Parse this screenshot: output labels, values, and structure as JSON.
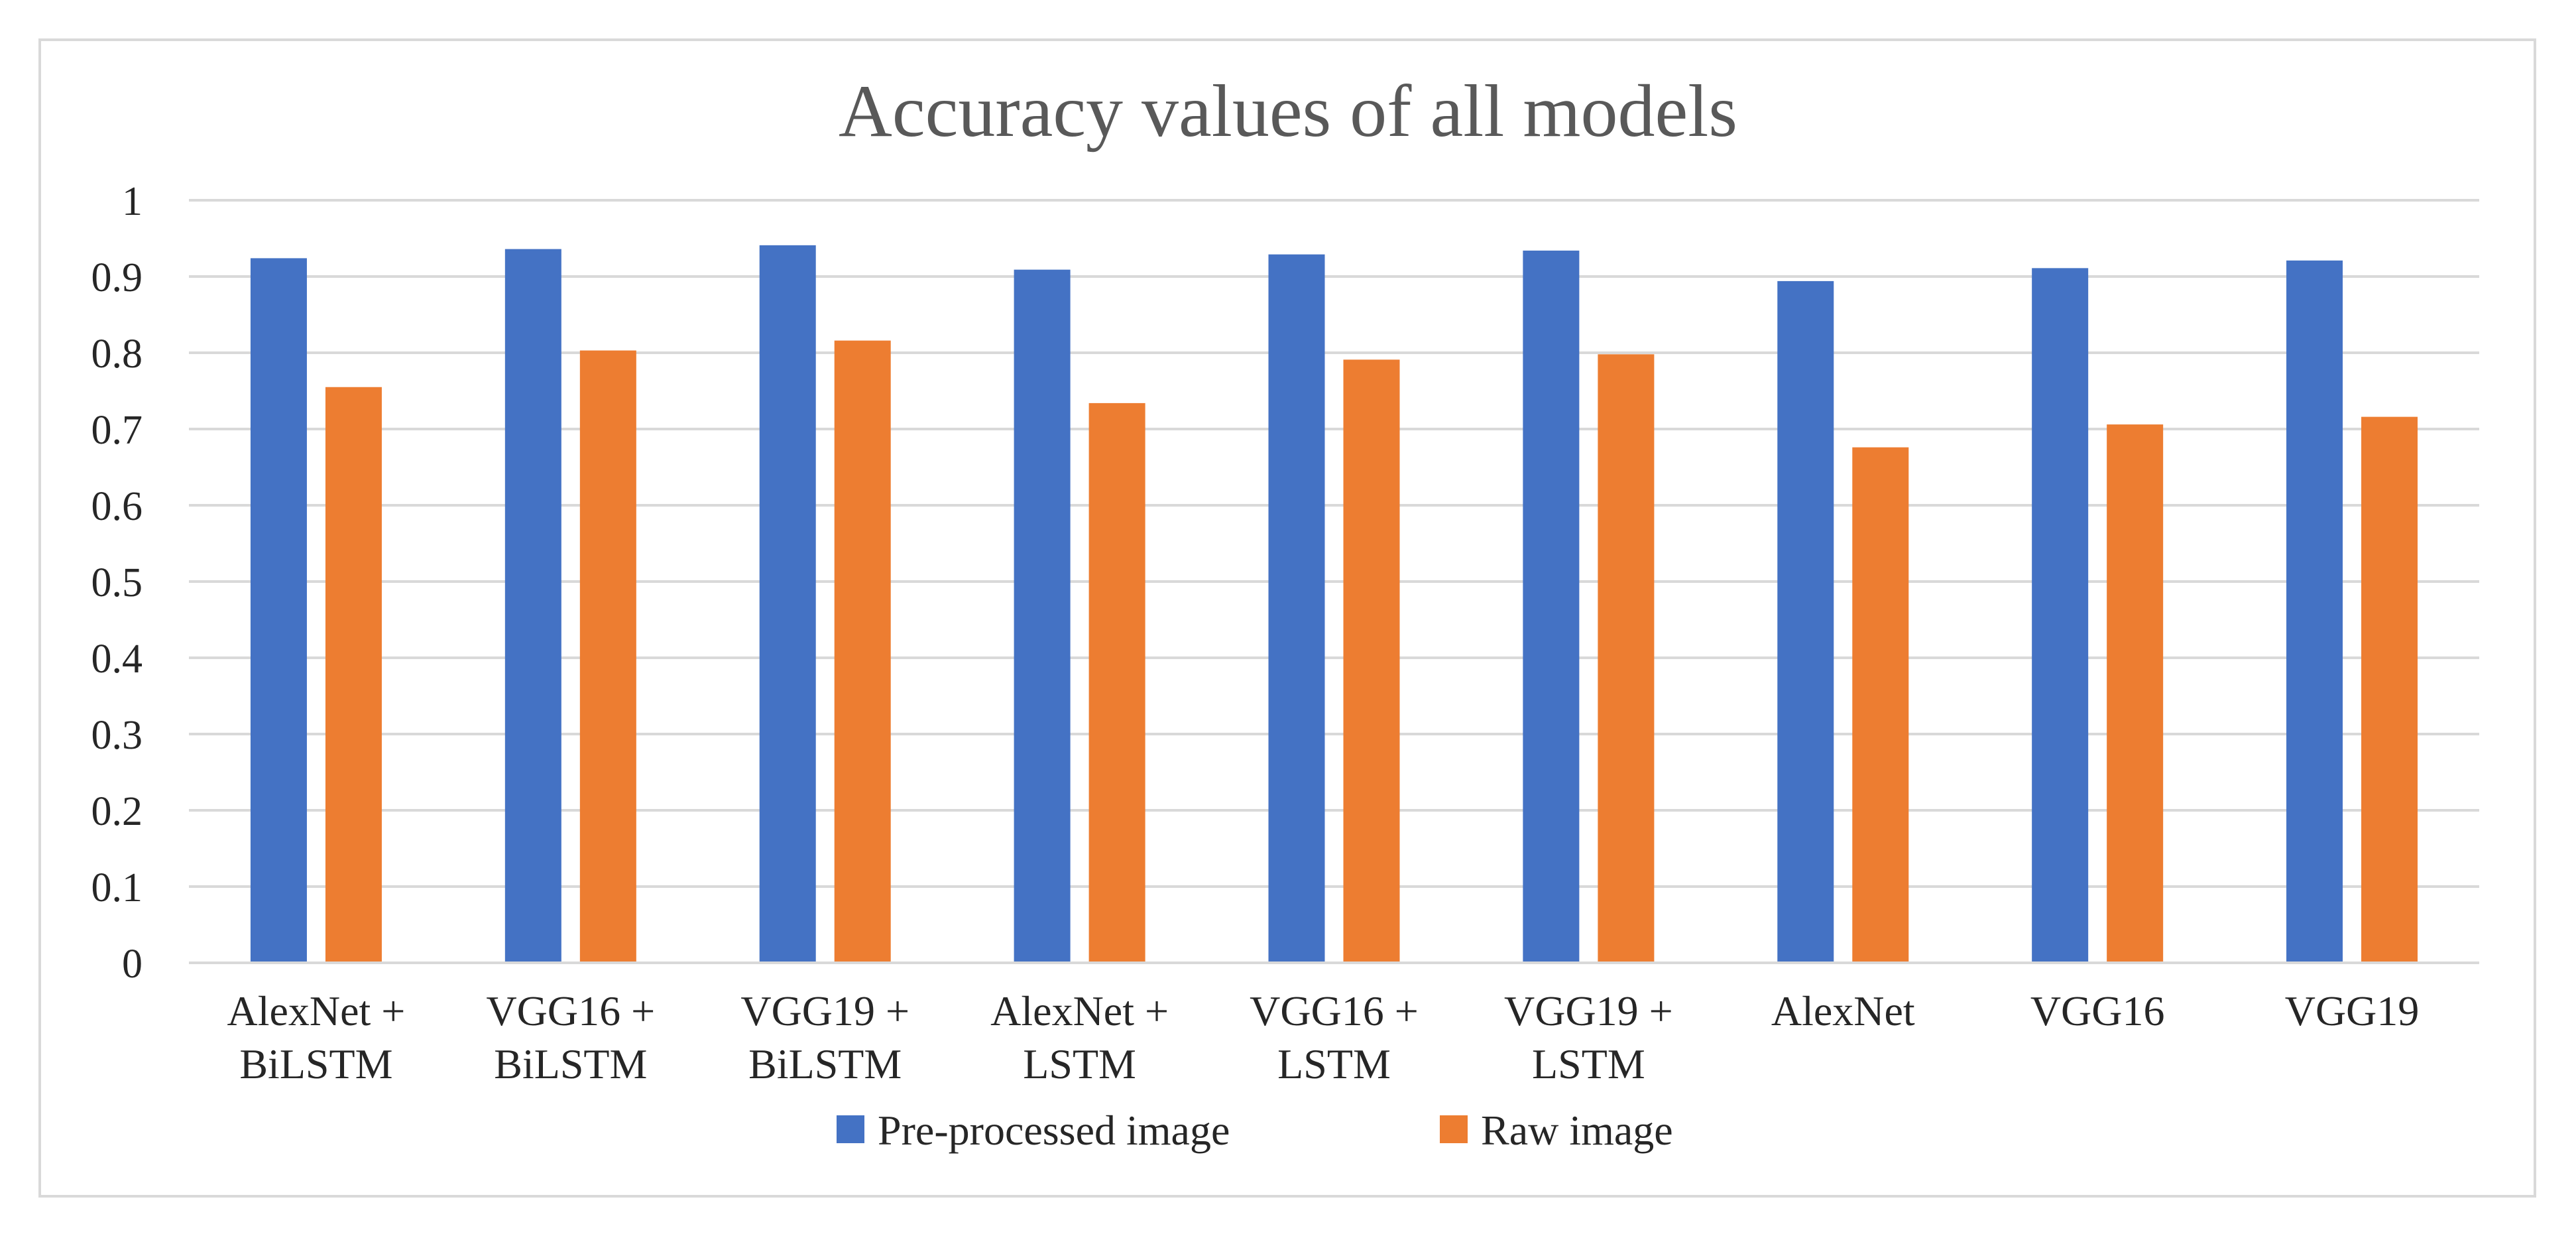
{
  "chart_data": {
    "type": "bar",
    "title": "Accuracy values of all models",
    "xlabel": "",
    "ylabel": "",
    "ylim": [
      0,
      1
    ],
    "yticks": [
      "0",
      "0.1",
      "0.2",
      "0.3",
      "0.4",
      "0.5",
      "0.6",
      "0.7",
      "0.8",
      "0.9",
      "1"
    ],
    "grid": true,
    "legend_position": "bottom",
    "categories": [
      [
        "AlexNet +",
        "BiLSTM"
      ],
      [
        "VGG16 +",
        "BiLSTM"
      ],
      [
        "VGG19 +",
        "BiLSTM"
      ],
      [
        "AlexNet +",
        "LSTM"
      ],
      [
        "VGG16 +",
        "LSTM"
      ],
      [
        "VGG19 +",
        "LSTM"
      ],
      [
        "AlexNet"
      ],
      [
        "VGG16"
      ],
      [
        "VGG19"
      ]
    ],
    "series": [
      {
        "name": "Pre-processed image",
        "color": "#4472C4",
        "values": [
          0.924,
          0.936,
          0.941,
          0.909,
          0.929,
          0.934,
          0.894,
          0.911,
          0.921
        ]
      },
      {
        "name": "Raw image",
        "color": "#ED7D31",
        "values": [
          0.755,
          0.803,
          0.816,
          0.734,
          0.791,
          0.798,
          0.676,
          0.706,
          0.716
        ]
      }
    ]
  }
}
